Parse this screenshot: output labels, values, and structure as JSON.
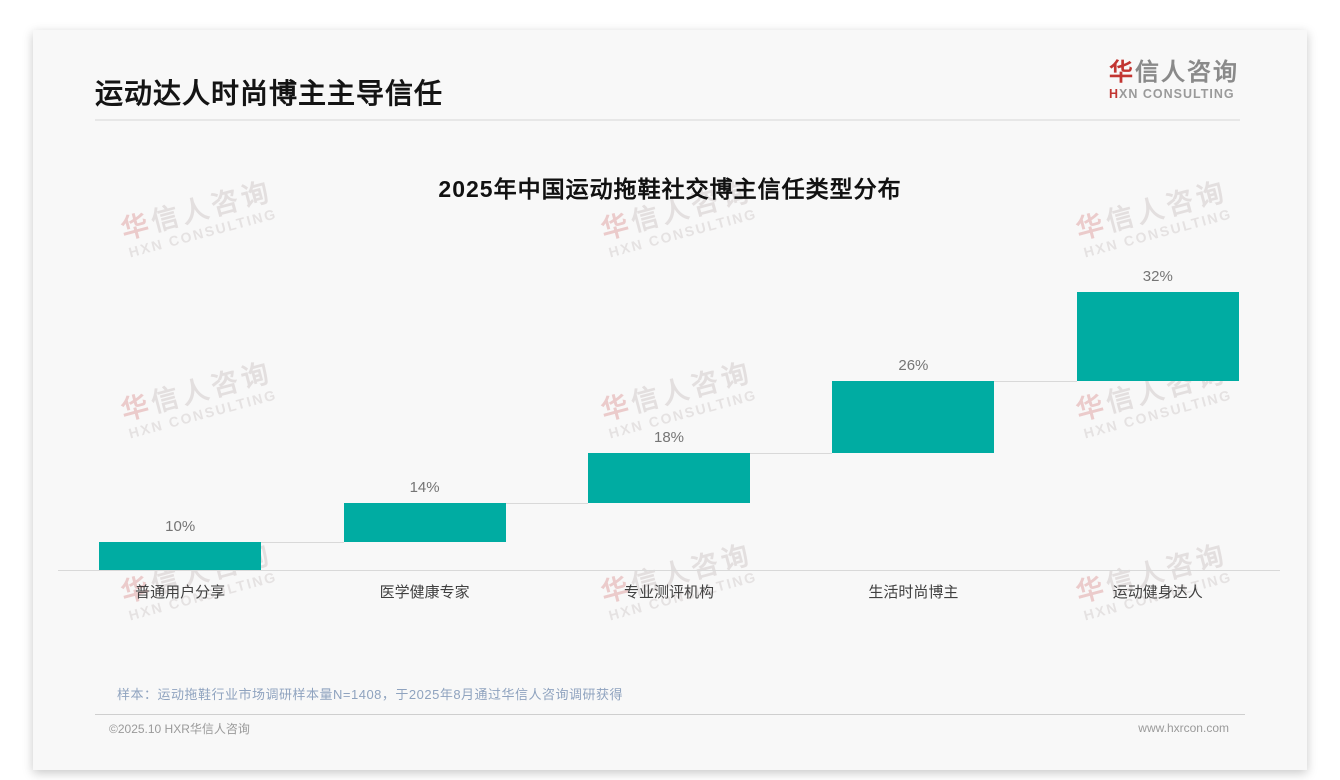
{
  "slide": {
    "header": {
      "title": "运动达人时尚博主主导信任"
    },
    "logo": {
      "cn_first": "华",
      "cn_rest": "信人咨询",
      "en_first": "H",
      "en_rest": "XN CONSULTING"
    },
    "watermark": {
      "cn_first": "华",
      "cn_rest": "信人咨询",
      "en": "HXN CONSULTING"
    },
    "note": "样本：运动拖鞋行业市场调研样本量N=1408，于2025年8月通过华信人咨询调研获得",
    "footer": {
      "left": "©2025.10 HXR华信人咨询",
      "right": "www.hxrcon.com"
    }
  },
  "chart_data": {
    "type": "bar",
    "subtype": "waterfall-step",
    "title": "2025年中国运动拖鞋社交博主信任类型分布",
    "categories": [
      "普通用户分享",
      "医学健康专家",
      "专业测评机构",
      "生活时尚博主",
      "运动健身达人"
    ],
    "values": [
      10,
      14,
      18,
      26,
      32
    ],
    "labels": [
      "10%",
      "14%",
      "18%",
      "26%",
      "32%"
    ],
    "unit": "%",
    "bar_color": "#00aca2",
    "connector_color": "#d9d9d9",
    "ylim": [
      0,
      100
    ],
    "grid": false,
    "legend": false,
    "xlabel": "",
    "ylabel": ""
  }
}
